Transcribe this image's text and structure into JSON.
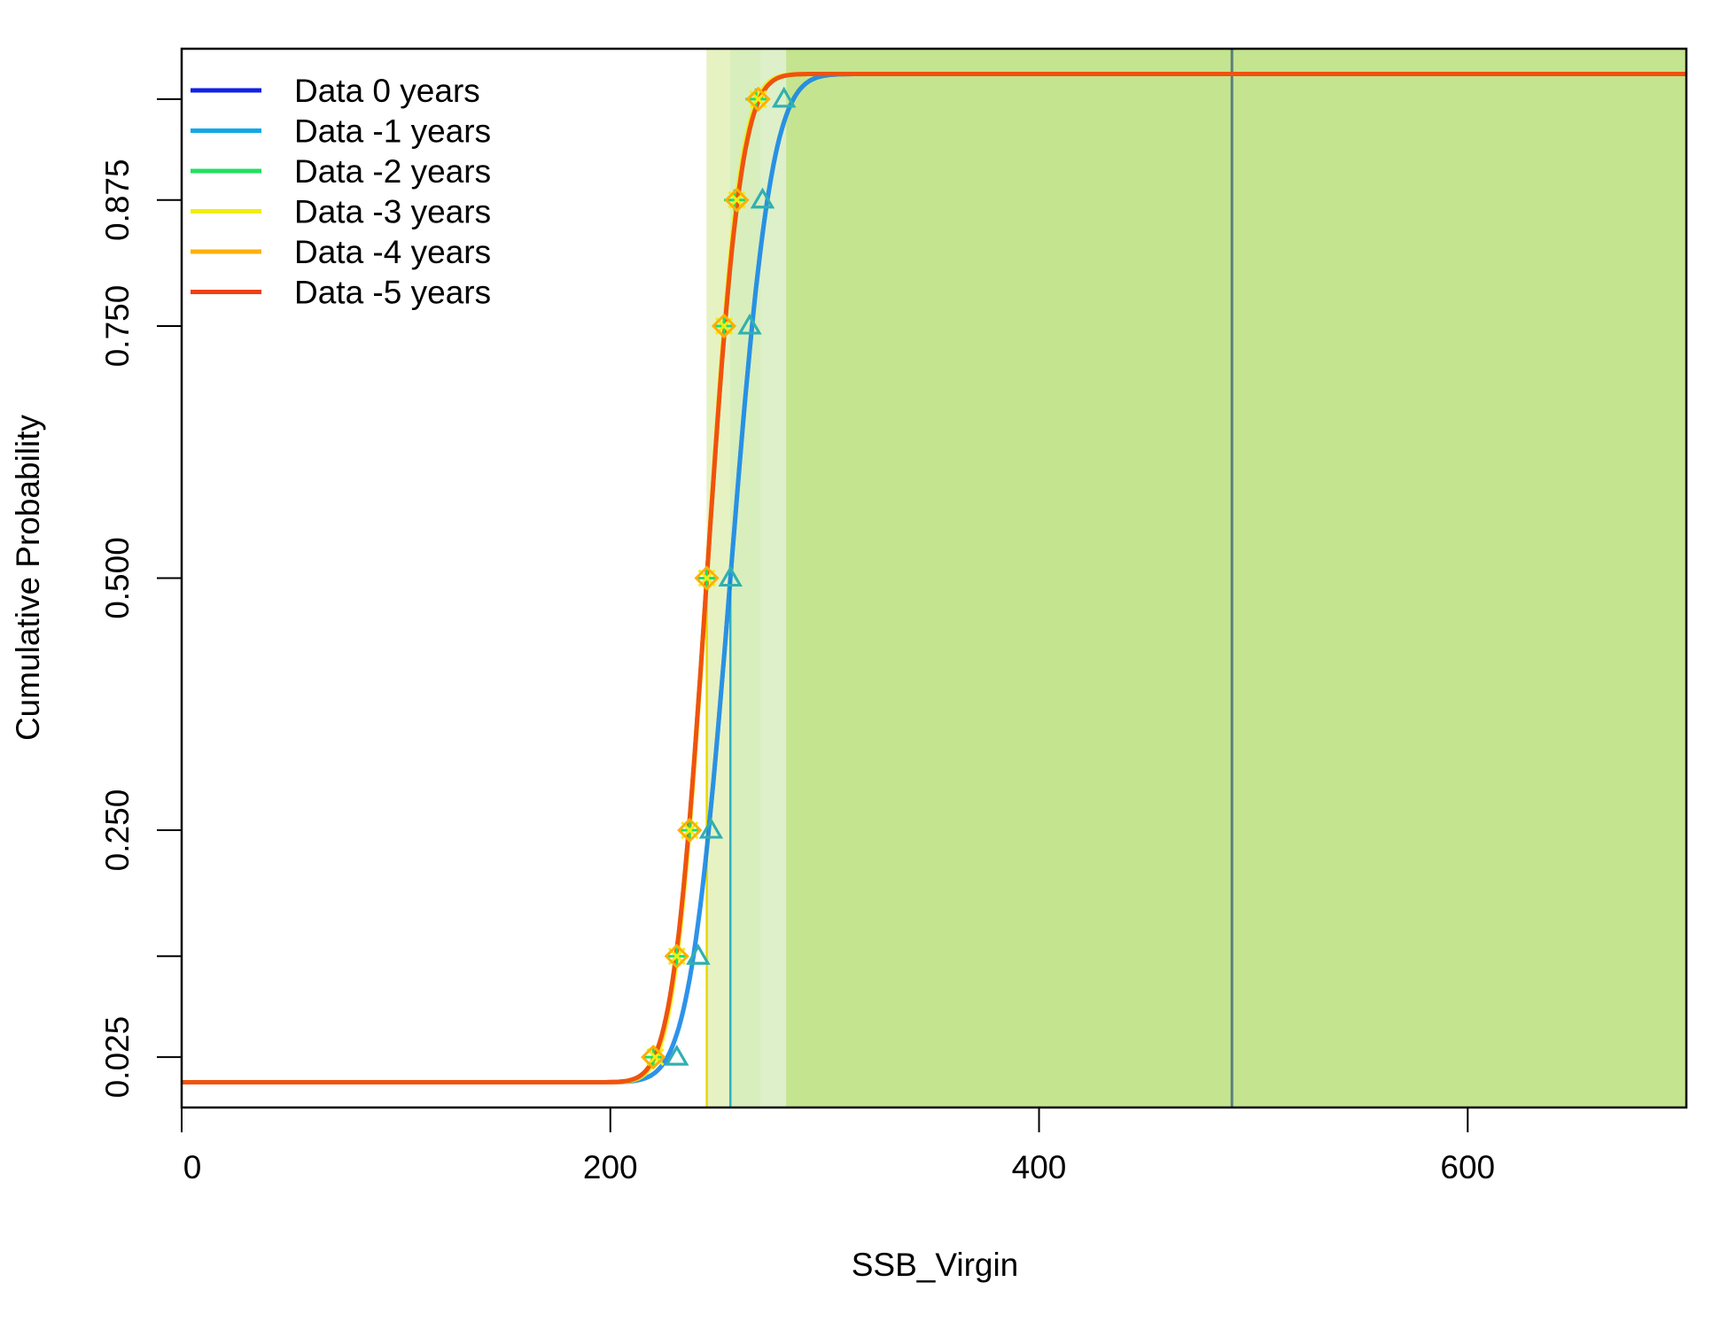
{
  "chart_data": {
    "type": "line",
    "title": "",
    "xlabel": "SSB_Virgin",
    "ylabel": "Cumulative Probability",
    "xlim": [
      0,
      702
    ],
    "ylim": [
      0,
      1
    ],
    "x_ticks": [
      0,
      200,
      400,
      600
    ],
    "x_tick_labels": [
      "0",
      "200",
      "400",
      "600"
    ],
    "y_ticks": [
      0.025,
      0.125,
      0.25,
      0.5,
      0.75,
      0.875,
      0.975
    ],
    "y_tick_labels": [
      "0.025",
      "",
      "0.250",
      "0.500",
      "0.750",
      "0.875",
      ""
    ],
    "legend_position": "top-left",
    "reference_line_x": 490,
    "background_fill": {
      "from_x": 282,
      "color": "#c5e490"
    },
    "series": [
      {
        "name": "Data 0 years",
        "color": "#1020e8",
        "median": 256,
        "sd": 15,
        "marker": "triangle",
        "quantiles": [
          231,
          241,
          247,
          256,
          265,
          271,
          281
        ],
        "quantile_probs": [
          0.025,
          0.125,
          0.25,
          0.5,
          0.75,
          0.875,
          0.975
        ],
        "band_color": "#d4ecbc",
        "band_to": 282
      },
      {
        "name": "Data -1 years",
        "color": "#10a8e8",
        "median": 256,
        "sd": 15,
        "marker": "triangle",
        "quantiles": [
          231,
          241,
          247,
          256,
          265,
          271,
          281
        ],
        "quantile_probs": [
          0.025,
          0.125,
          0.25,
          0.5,
          0.75,
          0.875,
          0.975
        ],
        "band_color": "#d4ecbc",
        "band_to": 282
      },
      {
        "name": "Data -2 years",
        "color": "#20e060",
        "median": 245,
        "sd": 12.5,
        "marker": "plus",
        "quantiles": [
          220,
          231,
          237,
          245,
          253,
          258,
          268
        ],
        "quantile_probs": [
          0.025,
          0.125,
          0.25,
          0.5,
          0.75,
          0.875,
          0.975
        ],
        "band_color": "#d8ecc0",
        "band_to": 270
      },
      {
        "name": "Data -3 years",
        "color": "#f0ee10",
        "median": 245,
        "sd": 12,
        "marker": "cross",
        "quantiles": [
          221,
          231,
          237,
          245,
          253,
          259,
          269
        ],
        "quantile_probs": [
          0.025,
          0.125,
          0.25,
          0.5,
          0.75,
          0.875,
          0.975
        ],
        "band_color": "#e8f2c0",
        "band_to": 270
      },
      {
        "name": "Data -4 years",
        "color": "#ffb000",
        "median": 245,
        "sd": 12.5,
        "marker": "diamond",
        "quantiles": [
          220,
          231,
          237,
          245,
          253,
          259,
          269
        ],
        "quantile_probs": [
          0.025,
          0.125,
          0.25,
          0.5,
          0.75,
          0.875,
          0.975
        ],
        "band_color": "#e6f0c0",
        "band_to": 270
      },
      {
        "name": "Data -5 years",
        "color": "#f04010",
        "median": 245,
        "sd": 12.5,
        "marker": "none",
        "quantiles": [],
        "quantile_probs": [],
        "band_color": "#e6f0c0",
        "band_to": 270
      }
    ],
    "median_lines": [
      {
        "x": 256,
        "color": "#30b0c0"
      },
      {
        "x": 245,
        "color": "#e8d800"
      }
    ]
  }
}
